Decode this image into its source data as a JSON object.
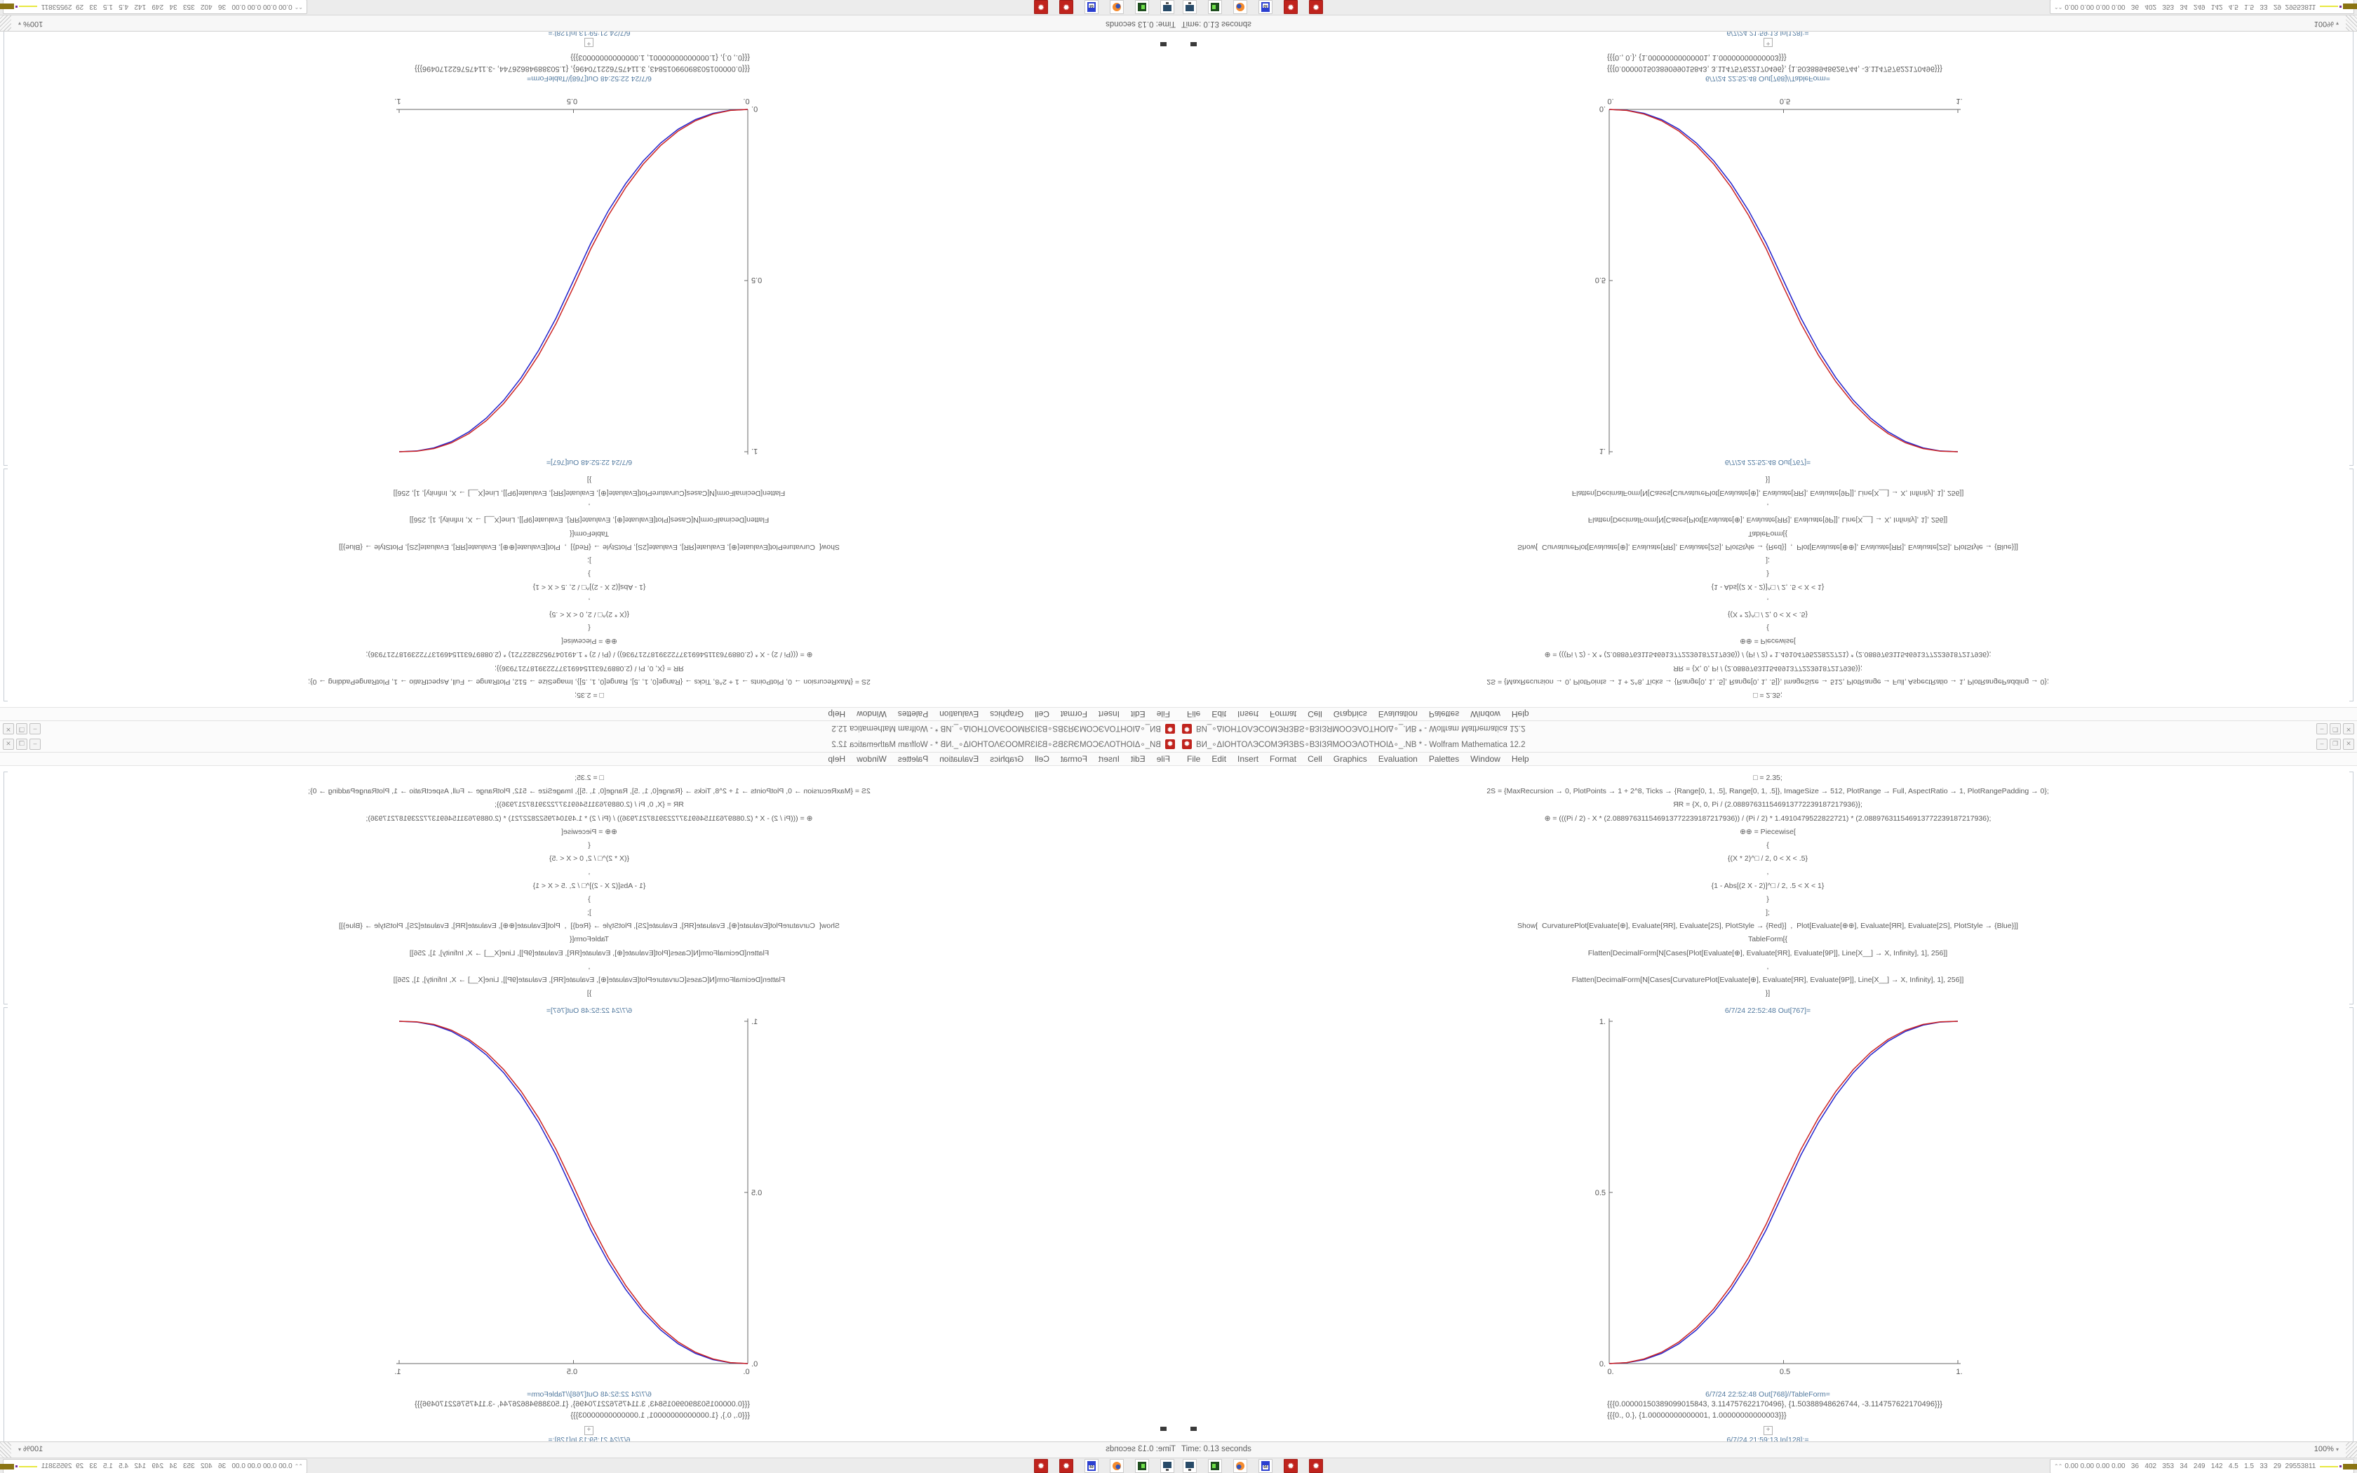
{
  "window": {
    "title": "ВИ_∘ΔΙΟΗΤΟΛЭCOΜЭЯЗВЅ∘ВЗΙЗЯΜΟΟЭΛΟΤΗΟΙΔ∘_.NB * - Wolfram Mathematica 12.2",
    "app_icon_glyph": "✹",
    "controls": {
      "minimize": "–",
      "maximize": "❐",
      "close": "✕"
    },
    "menus": [
      "File",
      "Edit",
      "Insert",
      "Format",
      "Cell",
      "Graphics",
      "Evaluation",
      "Palettes",
      "Window",
      "Help"
    ]
  },
  "notebook": {
    "input_lines": [
      "□ = 2.35;",
      "2S = {MaxRecursion → 0, PlotPoints → 1 + 2^8, Ticks → {Range[0, 1, .5], Range[0, 1, .5]}, ImageSize → 512, PlotRange → Full, AspectRatio → 1, PlotRangePadding → 0};",
      "ЯR = {X, 0, Pi / (2.088976311546913772239187217936)};",
      "⊕ = (((Pi / 2) - X * (2.088976311546913772239187217936)) / (Pi / 2) * 1.4910479522822721) * (2.088976311546913772239187217936);",
      "⊕⊕ = Piecewise[",
      "{",
      "{(X * 2)^□ / 2, 0 < X < .5}",
      ",",
      "{1 - Abs[(2 X - 2)]^□ / 2, .5 < X < 1}",
      "}",
      "];",
      "Show[  CurvaturePlot[Evaluate[⊕], Evaluate[ЯR], Evaluate[2S], PlotStyle → {Red}]  ,  Plot[Evaluate[⊕⊕], Evaluate[ЯR], Evaluate[2S], PlotStyle → {Blue}]]",
      "TableForm[{",
      "Flatten[DecimalForm[N[Cases[Plot[Evaluate[⊕], Evaluate[ЯR], Evaluate[9P]], Line[X__] → X, Infinity], 1], 256]]",
      ",",
      "Flatten[DecimalForm[N[Cases[CurvaturePlot[Evaluate[⊕], Evaluate[ЯR], Evaluate[9P]], Line[X__] → X, Infinity], 1], 256]]",
      "}]"
    ],
    "out767_label": "6/7/24 22:52:48 Out[767]=",
    "out768_label": "6/7/24 22:52:48 Out[768]//TableForm=",
    "table_lines": [
      "{{{0.00000150389099015843, 3.114757622170496}, {1.50388948626744, -3.114757622170496}}}",
      "{{{0., 0.}, {1.00000000000001, 1.00000000000003}}}"
    ],
    "insert_plus_glyph": "+",
    "next_cell_label": "6/7/24 21:59:13 In[128]:=",
    "status_time": "Time: 0.13 seconds",
    "zoom_level": "100%",
    "zoom_arrow": "▾"
  },
  "taskbar": {
    "icons": [
      "display-icon",
      "terminal-icon",
      "firefox-icon",
      "floppy-disk-icon",
      "mathematica-icon",
      "mathematica-icon"
    ],
    "mathematica_glyph": "✹",
    "floppy_label": "64",
    "stats_chevron": "⌃⌃",
    "stats_text": "0.00 0.00 0.00 0.00   36   402   353   34   249   142   4.5   1.5   33   29  29553811"
  },
  "chart_data": {
    "type": "line",
    "title": "",
    "xlabel": "",
    "ylabel": "",
    "xlim": [
      0,
      1
    ],
    "ylim": [
      0,
      1
    ],
    "grid": false,
    "legend": "none",
    "axis_color": "#6a6a6a",
    "description": "Piecewise smoothstep curve y=(2x)^2.35/2 for 0<x<0.5, y=1-|2x-2|^2.35/2 for 0.5<x<1; red CurvaturePlot overlaps blue Plot",
    "xticks": [
      {
        "v": 0,
        "label": "0."
      },
      {
        "v": 0.5,
        "label": "0.5"
      },
      {
        "v": 1,
        "label": "1."
      }
    ],
    "yticks": [
      {
        "v": 0,
        "label": "0."
      },
      {
        "v": 0.5,
        "label": "0.5"
      },
      {
        "v": 1,
        "label": "1."
      }
    ],
    "series": [
      {
        "name": "Plot (Blue)",
        "color": "#2222cc",
        "x": [
          0,
          0.05,
          0.1,
          0.15,
          0.2,
          0.25,
          0.3,
          0.35,
          0.4,
          0.45,
          0.5,
          0.55,
          0.6,
          0.65,
          0.7,
          0.75,
          0.8,
          0.85,
          0.9,
          0.95,
          1
        ],
        "values": [
          0,
          0.0022,
          0.0114,
          0.0295,
          0.058,
          0.0981,
          0.1505,
          0.2163,
          0.296,
          0.3904,
          0.5,
          0.6096,
          0.704,
          0.7837,
          0.8495,
          0.9019,
          0.942,
          0.9705,
          0.9886,
          0.9978,
          1
        ]
      },
      {
        "name": "CurvaturePlot (Red)",
        "color": "#cc2222",
        "x": [
          0,
          0.05,
          0.1,
          0.15,
          0.2,
          0.25,
          0.3,
          0.35,
          0.4,
          0.45,
          0.5,
          0.55,
          0.6,
          0.65,
          0.7,
          0.75,
          0.8,
          0.85,
          0.9,
          0.95,
          1
        ],
        "values": [
          0,
          0.0029,
          0.0136,
          0.0331,
          0.0633,
          0.1055,
          0.1599,
          0.2279,
          0.3099,
          0.4067,
          0.5188,
          0.6259,
          0.7179,
          0.7953,
          0.8589,
          0.9093,
          0.9473,
          0.9741,
          0.9908,
          0.9985,
          1
        ]
      }
    ]
  },
  "layout_note": "Same desktop shown 4 times: bottom-right normal, bottom-left mirrored horizontally, top-right mirrored vertically, top-left rotated 180 degrees"
}
